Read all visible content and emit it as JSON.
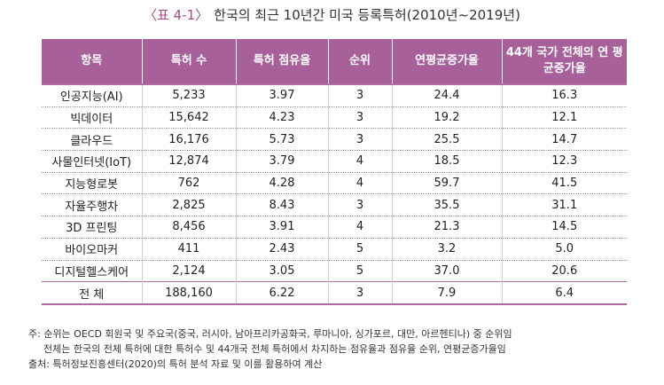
{
  "title": {
    "tag": "〈표 4-1〉",
    "text": "한국의 최근 10년간 미국 등록특허(2010년~2019년)"
  },
  "table": {
    "headers": [
      "항목",
      "특허 수",
      "특허 점유율",
      "순위",
      "연평균증가율",
      "44개 국가 전체의 연 평균증가율"
    ],
    "rows": [
      [
        "인공지능(AI)",
        "5,233",
        "3.97",
        "3",
        "24.4",
        "16.3"
      ],
      [
        "빅데이터",
        "15,642",
        "4.23",
        "3",
        "19.2",
        "12.1"
      ],
      [
        "클라우드",
        "16,176",
        "5.73",
        "3",
        "25.5",
        "14.7"
      ],
      [
        "사물인터넷(IoT)",
        "12,874",
        "3.79",
        "4",
        "18.5",
        "12.3"
      ],
      [
        "지능형로봇",
        "762",
        "4.28",
        "4",
        "59.7",
        "41.5"
      ],
      [
        "자율주행차",
        "2,825",
        "8.43",
        "3",
        "35.5",
        "31.1"
      ],
      [
        "3D 프린팅",
        "8,456",
        "3.91",
        "4",
        "21.3",
        "14.5"
      ],
      [
        "바이오마커",
        "411",
        "2.43",
        "5",
        "3.2",
        "5.0"
      ],
      [
        "디지털헬스케어",
        "2,124",
        "3.05",
        "5",
        "37.0",
        "20.6"
      ]
    ],
    "total": [
      "전 체",
      "188,160",
      "6.22",
      "3",
      "7.9",
      "6.4"
    ]
  },
  "notes": {
    "line1": "주: 순위는 OECD 회원국 및 주요국(중국, 러시아, 남아프리카공화국, 루마니아, 싱가포르, 대만, 아르헨티나) 중 순위임",
    "line2": "전체는 한국의 전체 특허에 대한 특허수 및 44개국 전체 특허에서 차지하는 점유율과 점유율 순위, 연평균증가율임",
    "line3": "출처: 특허정보진흥센터(2020)의 특허 분석 자료 및 이를 활용하여 계산"
  },
  "colors": {
    "header_bg": "#a8609b",
    "accent": "#a24a86"
  }
}
